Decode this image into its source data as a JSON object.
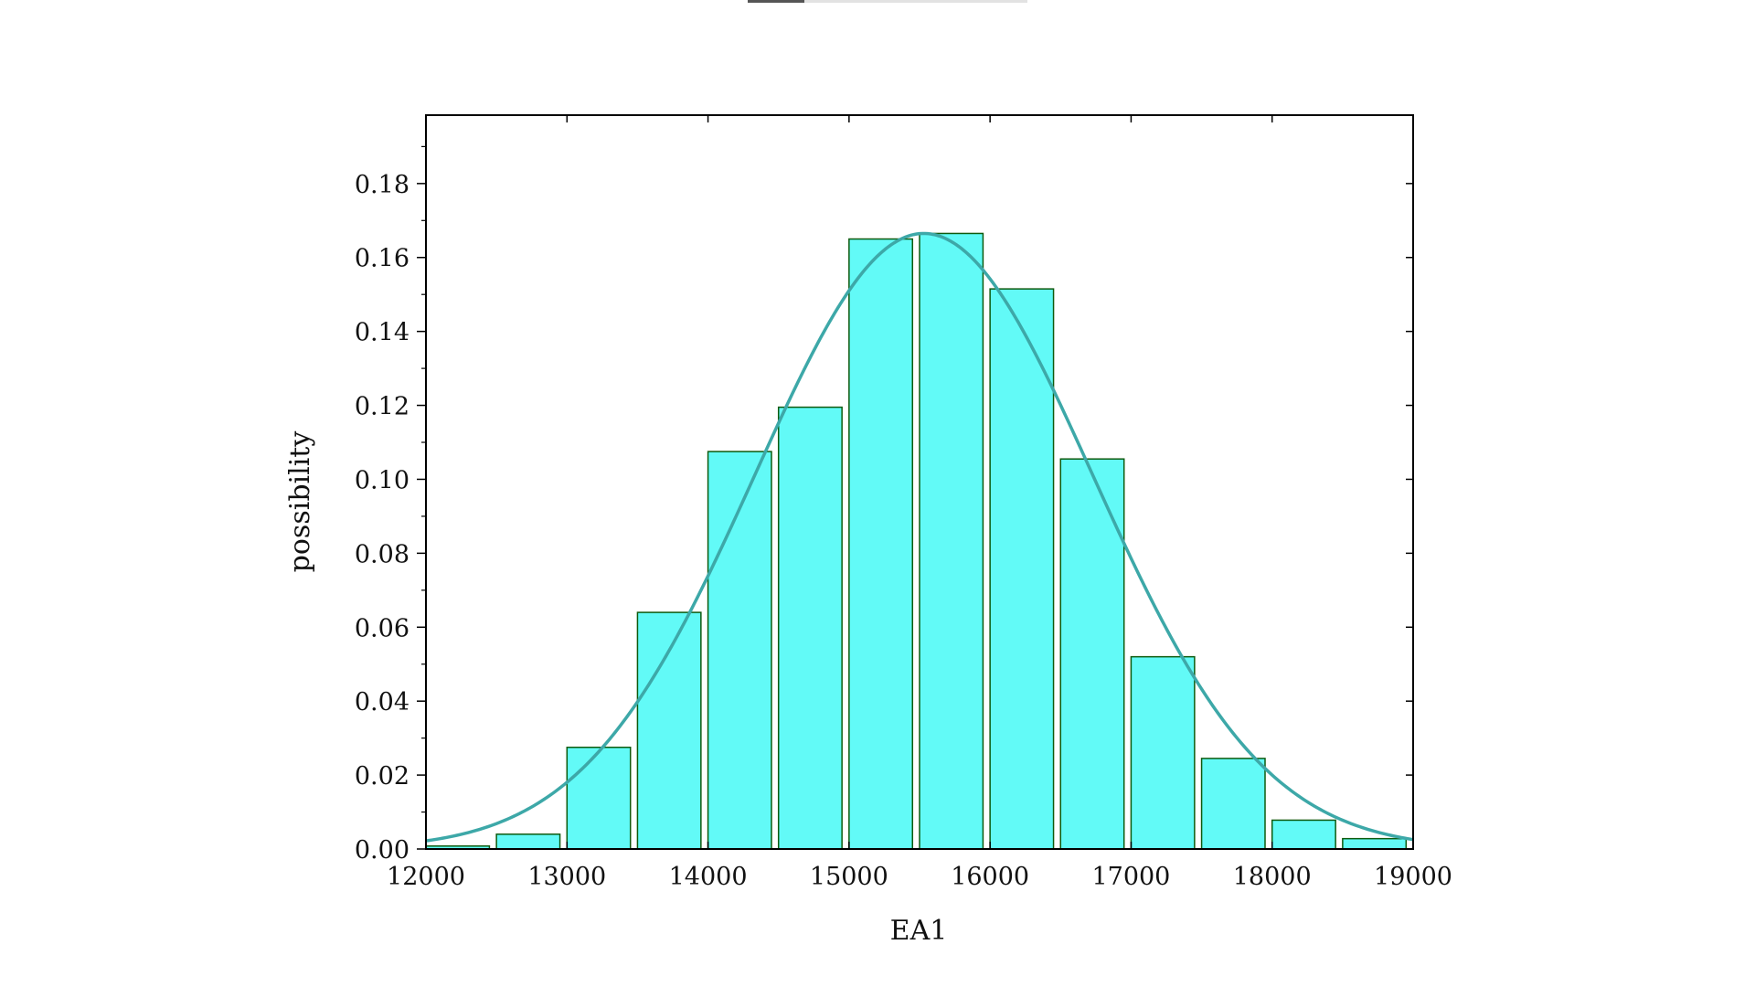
{
  "chart_data": {
    "type": "bar",
    "title": "",
    "xlabel": "EA1",
    "ylabel": "possibility",
    "xlim": [
      12000,
      19000
    ],
    "ylim": [
      0,
      0.2
    ],
    "x_ticks": [
      "12000",
      "13000",
      "14000",
      "15000",
      "16000",
      "17000",
      "18000",
      "19000"
    ],
    "y_ticks": [
      "0.00",
      "0.02",
      "0.04",
      "0.06",
      "0.08",
      "0.10",
      "0.12",
      "0.14",
      "0.16",
      "0.18"
    ],
    "bin_width": 500,
    "bin_starts": [
      12000,
      12500,
      13000,
      13500,
      14000,
      14500,
      15000,
      15500,
      16000,
      16500,
      17000,
      17500,
      18000,
      18500
    ],
    "values": [
      0.0008,
      0.004,
      0.0275,
      0.064,
      0.1075,
      0.1195,
      0.165,
      0.1665,
      0.1515,
      0.1055,
      0.052,
      0.0245,
      0.0078,
      0.0028
    ],
    "fit_curve": {
      "type": "normal",
      "mean": 15530,
      "std": 1200,
      "peak": 0.1665
    },
    "grid": false,
    "legend": "none",
    "colors": {
      "bar_fill": "#62FAF7",
      "bar_stroke": "#0E5A0E",
      "curve": "#3DA8A8",
      "axis": "#000000"
    }
  }
}
